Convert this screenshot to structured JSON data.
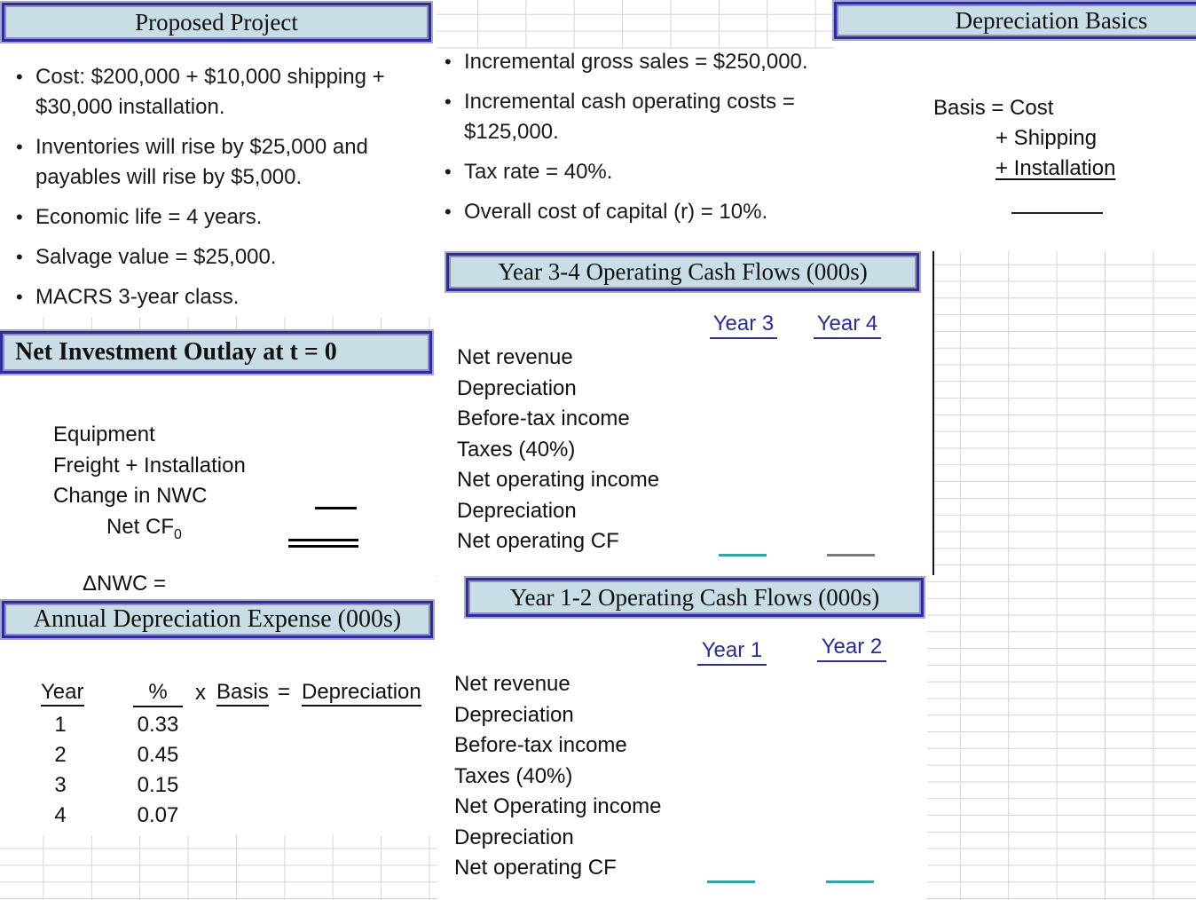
{
  "colors": {
    "title_box_fill": "#c9dde7",
    "title_box_border": "#2e2e96",
    "title_box_outer_line": "#a6a6d6",
    "year_header_text": "#2b2d8e",
    "teal_total_line": "#3f9da5",
    "gray_total_line": "#7a7a7a",
    "grid_line": "#d4d4d4",
    "body_text": "#1a1a1a"
  },
  "proposed_project": {
    "title": "Proposed Project",
    "bullets": [
      "Cost: $200,000 + $10,000 shipping + $30,000 installation.",
      "Inventories will rise by $25,000 and payables will rise by $5,000.",
      "Economic life = 4 years.",
      "Salvage value = $25,000.",
      "MACRS 3-year class."
    ]
  },
  "assumptions": {
    "bullets": [
      "Incremental gross sales = $250,000.",
      "Incremental cash operating costs = $125,000.",
      "Tax rate = 40%.",
      "Overall cost of capital (r) = 10%."
    ]
  },
  "depreciation_basics": {
    "title": "Depreciation Basics",
    "line1": "Basis = Cost",
    "line2": "+ Shipping",
    "line3": "+ Installation"
  },
  "net_investment_outlay": {
    "title": "Net Investment Outlay at t = 0",
    "items": [
      "Equipment",
      "Freight + Installation",
      "Change in NWC"
    ],
    "net_cf_label": "Net CF",
    "net_cf_subscript": "0",
    "delta_nwc_label": "ΔNWC ="
  },
  "year_3_4": {
    "title": "Year 3-4 Operating Cash Flows (000s)",
    "columns": [
      "Year 3",
      "Year 4"
    ],
    "rows": [
      "Net revenue",
      "Depreciation",
      "Before-tax income",
      "Taxes (40%)",
      "Net operating income",
      "Depreciation",
      "Net operating CF"
    ]
  },
  "year_1_2": {
    "title": "Year 1-2 Operating Cash Flows (000s)",
    "columns": [
      "Year 1",
      "Year 2"
    ],
    "rows": [
      "Net revenue",
      "Depreciation",
      "Before-tax income",
      "Taxes (40%)",
      "Net Operating income",
      "Depreciation",
      "Net operating CF"
    ]
  },
  "annual_depreciation": {
    "title": "Annual Depreciation Expense (000s)",
    "headers": {
      "year": "Year",
      "pct": "%",
      "times": "x",
      "basis": "Basis",
      "equals": "=",
      "depreciation": "Depreciation"
    },
    "rows": [
      {
        "year": "1",
        "pct": "0.33"
      },
      {
        "year": "2",
        "pct": "0.45"
      },
      {
        "year": "3",
        "pct": "0.15"
      },
      {
        "year": "4",
        "pct": "0.07"
      }
    ]
  }
}
